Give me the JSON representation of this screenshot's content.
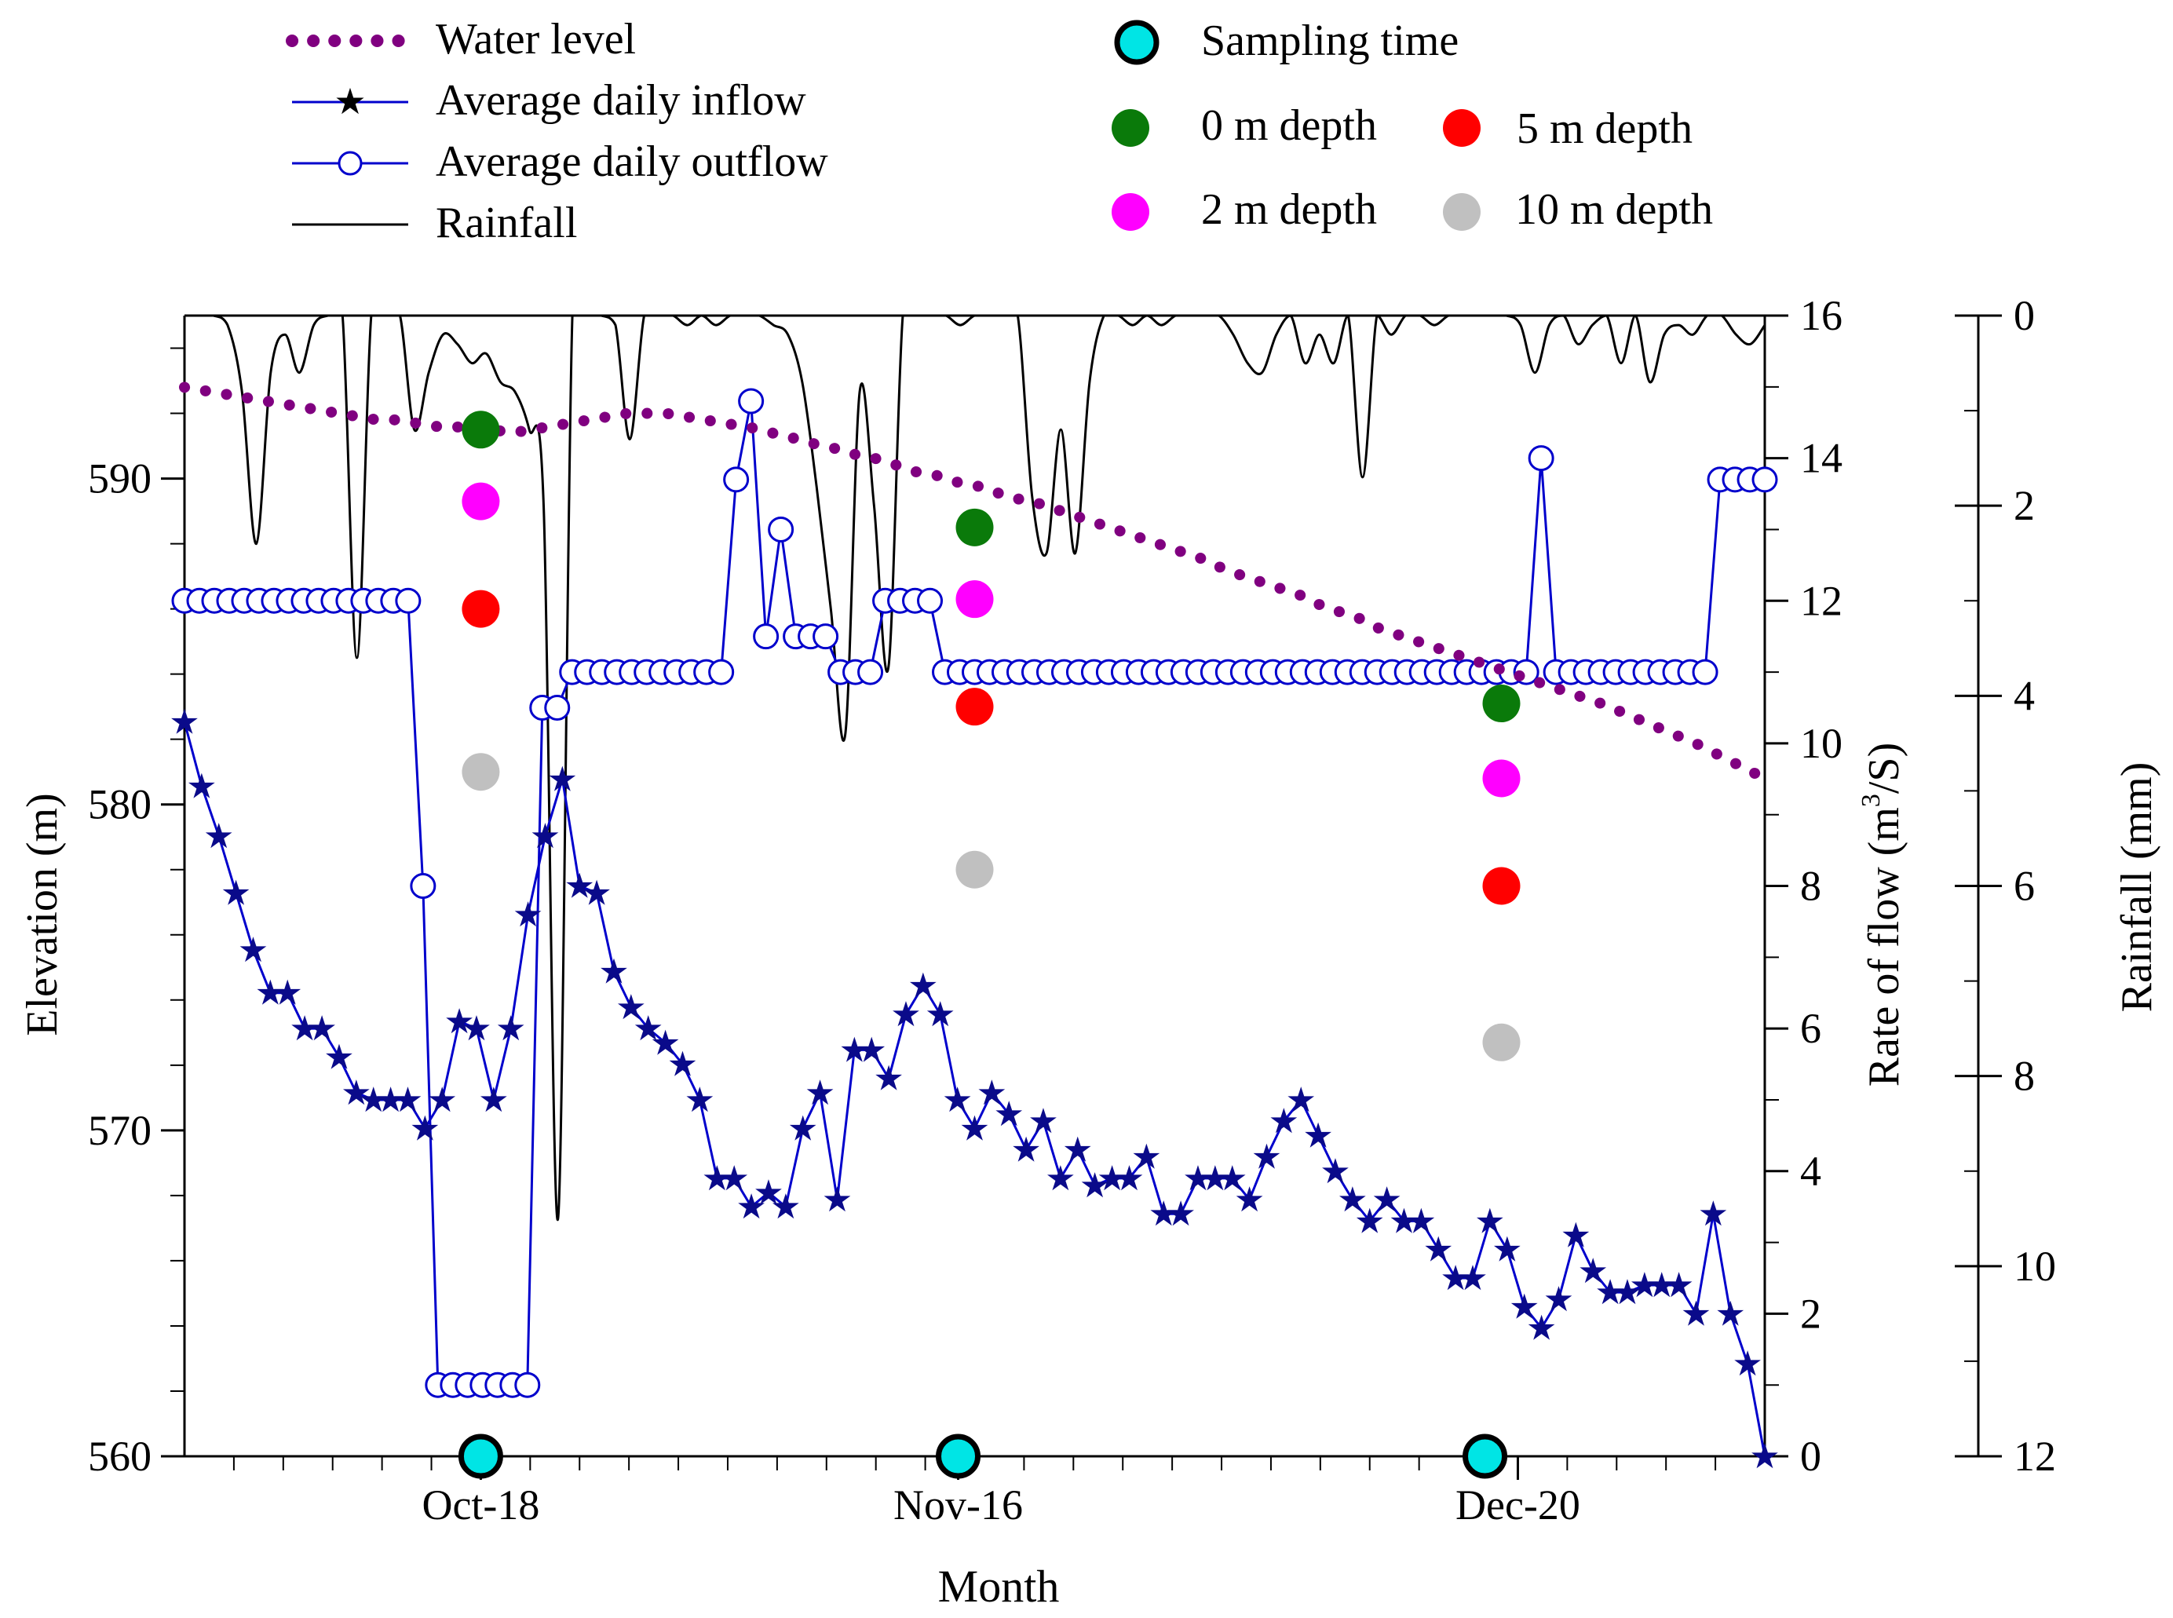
{
  "chart_data": {
    "type": "line",
    "xlabel": "Month",
    "x_tick_labels": [
      {
        "label": "Oct-18",
        "day": 18
      },
      {
        "label": "Nov-16",
        "day": 47
      },
      {
        "label": "Dec-20",
        "day": 81
      }
    ],
    "x_range": [
      0,
      96
    ],
    "left_axis": {
      "label": "Elevation (m)",
      "range": [
        560,
        595
      ],
      "ticks": [
        560,
        570,
        580,
        590
      ]
    },
    "right_axis_flow": {
      "label_main": "Rate of flow (m",
      "label_sup": "3",
      "label_tail": "/S)",
      "range": [
        0,
        16
      ],
      "ticks": [
        0,
        2,
        4,
        6,
        8,
        10,
        12,
        14,
        16
      ]
    },
    "right_axis_rain": {
      "label": "Rainfall (mm)",
      "range": [
        0,
        12
      ],
      "inverted": true,
      "ticks": [
        0,
        2,
        4,
        6,
        8,
        10,
        12
      ]
    },
    "legend": {
      "water_level": "Water level",
      "inflow": "Average daily inflow",
      "outflow": "Average daily outflow",
      "rainfall": "Rainfall",
      "sampling_time": "Sampling time",
      "depth0": "0 m depth",
      "depth5": "5 m depth",
      "depth2": "2 m depth",
      "depth10": "10 m depth"
    },
    "colors": {
      "water_level": "#800080",
      "flow": "#0000cc",
      "inflow_marker": "#0a0a8a",
      "rainfall": "#000000",
      "sampling": "#00e5e5",
      "depth0": "#0a7a0a",
      "depth2": "#ff00ff",
      "depth5": "#ff0000",
      "depth10": "#c0c0c0"
    },
    "sampling_days": [
      18,
      47,
      79
    ],
    "water_level": {
      "day_start": 0,
      "values": [
        592.8,
        592.7,
        592.6,
        592.5,
        592.4,
        592.3,
        592.2,
        592.1,
        592.0,
        591.9,
        591.8,
        591.8,
        591.7,
        591.6,
        591.6,
        591.5,
        591.5,
        591.4,
        591.5,
        591.6,
        591.7,
        591.8,
        591.9,
        592.0,
        592.0,
        592.0,
        591.9,
        591.8,
        591.7,
        591.6,
        591.5,
        591.3,
        591.2,
        591.0,
        590.9,
        590.7,
        590.6,
        590.4,
        590.2,
        590.1,
        589.9,
        589.8,
        589.6,
        589.4,
        589.3,
        589.1,
        588.9,
        588.7,
        588.5,
        588.3,
        588.1,
        587.9,
        587.7,
        587.5,
        587.2,
        587.0,
        586.8,
        586.6,
        586.4,
        586.1,
        585.9,
        585.7,
        585.4,
        585.2,
        585.0,
        584.8,
        584.6,
        584.4,
        584.2,
        584.0,
        583.8,
        583.6,
        583.4,
        583.2,
        583.0,
        582.7,
        582.5,
        582.2,
        582.0,
        581.7,
        581.4,
        581.1,
        580.8
      ]
    },
    "inflow": {
      "day_start": 0,
      "values": [
        10.3,
        9.4,
        8.7,
        7.9,
        7.1,
        6.5,
        6.5,
        6.0,
        6.0,
        5.6,
        5.1,
        5.0,
        5.0,
        5.0,
        4.6,
        5.0,
        6.1,
        6.0,
        5.0,
        6.0,
        7.6,
        8.7,
        9.5,
        8.0,
        7.9,
        6.8,
        6.3,
        6.0,
        5.8,
        5.5,
        5.0,
        3.9,
        3.9,
        3.5,
        3.7,
        3.5,
        4.6,
        5.1,
        3.6,
        5.7,
        5.7,
        5.3,
        6.2,
        6.6,
        6.2,
        5.0,
        4.6,
        5.1,
        4.8,
        4.3,
        4.7,
        3.9,
        4.3,
        3.8,
        3.9,
        3.9,
        4.2,
        3.4,
        3.4,
        3.9,
        3.9,
        3.9,
        3.6,
        4.2,
        4.7,
        5.0,
        4.5,
        4.0,
        3.6,
        3.3,
        3.6,
        3.3,
        3.3,
        2.9,
        2.5,
        2.5,
        3.3,
        2.9,
        2.1,
        1.8,
        2.2,
        3.1,
        2.6,
        2.3,
        2.3,
        2.4,
        2.4,
        2.4,
        2.0,
        3.4,
        2.0,
        1.3,
        0.0
      ]
    },
    "outflow": {
      "day_start": 0,
      "values": [
        12.0,
        12.0,
        12.0,
        12.0,
        12.0,
        12.0,
        12.0,
        12.0,
        12.0,
        12.0,
        12.0,
        12.0,
        12.0,
        12.0,
        12.0,
        12.0,
        8.0,
        1.0,
        1.0,
        1.0,
        1.0,
        1.0,
        1.0,
        1.0,
        10.5,
        10.5,
        11.0,
        11.0,
        11.0,
        11.0,
        11.0,
        11.0,
        11.0,
        11.0,
        11.0,
        11.0,
        11.0,
        13.7,
        14.8,
        11.5,
        13.0,
        11.5,
        11.5,
        11.5,
        11.0,
        11.0,
        11.0,
        12.0,
        12.0,
        12.0,
        12.0,
        11.0,
        11.0,
        11.0,
        11.0,
        11.0,
        11.0,
        11.0,
        11.0,
        11.0,
        11.0,
        11.0,
        11.0,
        11.0,
        11.0,
        11.0,
        11.0,
        11.0,
        11.0,
        11.0,
        11.0,
        11.0,
        11.0,
        11.0,
        11.0,
        11.0,
        11.0,
        11.0,
        11.0,
        11.0,
        11.0,
        11.0,
        11.0,
        11.0,
        11.0,
        11.0,
        11.0,
        11.0,
        11.0,
        11.0,
        11.0,
        14.0,
        11.0,
        11.0,
        11.0,
        11.0,
        11.0,
        11.0,
        11.0,
        11.0,
        11.0,
        11.0,
        11.0,
        13.7,
        13.7,
        13.7,
        13.7
      ]
    },
    "rainfall": {
      "day_start": 0,
      "values": [
        0.0,
        0.0,
        0.0,
        0.1,
        0.8,
        2.4,
        0.6,
        0.2,
        0.6,
        0.1,
        0.0,
        0.0,
        3.6,
        0.0,
        0.0,
        0.0,
        1.2,
        0.6,
        0.2,
        0.3,
        0.5,
        0.4,
        0.7,
        0.8,
        1.2,
        2.0,
        9.5,
        0.0,
        0.0,
        0.0,
        0.1,
        1.3,
        0.0,
        0.0,
        0.0,
        0.1,
        0.0,
        0.1,
        0.0,
        0.0,
        0.0,
        0.1,
        0.2,
        0.7,
        1.8,
        3.1,
        4.4,
        0.8,
        2.0,
        3.7,
        0.0,
        0.0,
        0.0,
        0.0,
        0.1,
        0.0,
        0.0,
        0.0,
        0.0,
        1.9,
        2.5,
        1.2,
        2.5,
        0.7,
        0.0,
        0.0,
        0.1,
        0.0,
        0.1,
        0.0,
        0.0,
        0.0,
        0.0,
        0.2,
        0.5,
        0.6,
        0.2,
        0.0,
        0.5,
        0.2,
        0.5,
        0.0,
        1.7,
        0.0,
        0.2,
        0.0,
        0.0,
        0.1,
        0.0,
        0.0,
        0.0,
        0.0,
        0.0,
        0.1,
        0.6,
        0.1,
        0.0,
        0.3,
        0.1,
        0.0,
        0.5,
        0.0,
        0.7,
        0.2,
        0.1,
        0.2,
        0.0,
        0.0,
        0.2,
        0.3,
        0.1
      ]
    },
    "depth_samples": [
      {
        "day": 18,
        "depth": "0 m",
        "elevation": 591.5
      },
      {
        "day": 18,
        "depth": "2 m",
        "elevation": 589.3
      },
      {
        "day": 18,
        "depth": "5 m",
        "elevation": 586.0
      },
      {
        "day": 18,
        "depth": "10 m",
        "elevation": 581.0
      },
      {
        "day": 48,
        "depth": "0 m",
        "elevation": 588.5
      },
      {
        "day": 48,
        "depth": "2 m",
        "elevation": 586.3
      },
      {
        "day": 48,
        "depth": "5 m",
        "elevation": 583.0
      },
      {
        "day": 48,
        "depth": "10 m",
        "elevation": 578.0
      },
      {
        "day": 80,
        "depth": "0 m",
        "elevation": 583.1
      },
      {
        "day": 80,
        "depth": "2 m",
        "elevation": 580.8
      },
      {
        "day": 80,
        "depth": "5 m",
        "elevation": 577.5
      },
      {
        "day": 80,
        "depth": "10 m",
        "elevation": 572.7
      }
    ]
  }
}
